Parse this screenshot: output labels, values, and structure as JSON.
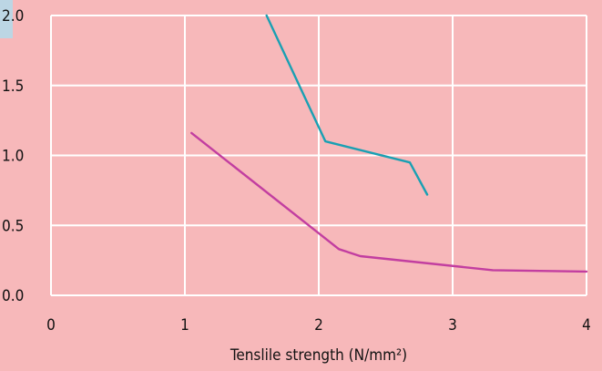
{
  "chart_data": {
    "type": "line",
    "title": "",
    "xlabel": "Tenslile strength (N/mm²)",
    "ylabel": "",
    "xlim": [
      0,
      4
    ],
    "ylim": [
      0,
      2
    ],
    "x_ticks": [
      "0",
      "1",
      "2",
      "3",
      "4"
    ],
    "y_ticks": [
      "0.0",
      "0.5",
      "1.0",
      "1.5",
      "2.0"
    ],
    "grid": true,
    "legend": "none",
    "series": [
      {
        "color": "#1aa0b3",
        "x": [
          1.61,
          2.05,
          2.68,
          2.81
        ],
        "y": [
          2.0,
          1.1,
          0.95,
          0.72
        ]
      },
      {
        "color": "#c23ea0",
        "x": [
          1.05,
          2.15,
          2.31,
          3.3,
          4.0
        ],
        "y": [
          1.16,
          0.33,
          0.28,
          0.18,
          0.17
        ]
      }
    ]
  },
  "style": {
    "background": "#f7b8ba",
    "grid_color": "#ffffff",
    "text_color": "#111111",
    "corner_color": "#bcd6e4"
  }
}
